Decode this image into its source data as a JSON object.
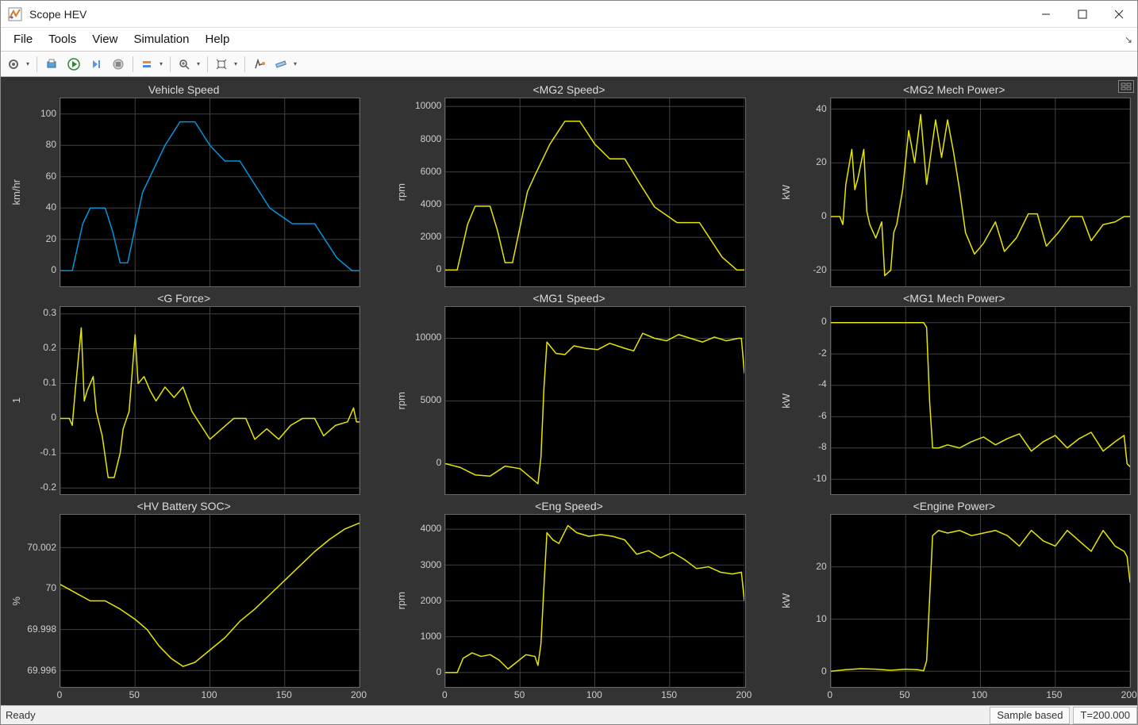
{
  "window": {
    "title": "Scope HEV",
    "minimize": "—",
    "maximize": "☐",
    "close": "✕"
  },
  "menu": {
    "items": [
      "File",
      "Tools",
      "View",
      "Simulation",
      "Help"
    ]
  },
  "toolbar": {
    "icons": [
      "settings",
      "print",
      "run",
      "step",
      "stop",
      "highlight",
      "zoom",
      "fit",
      "target",
      "measure"
    ]
  },
  "status": {
    "ready": "Ready",
    "mode": "Sample based",
    "time": "T=200.000"
  },
  "layout": {
    "bg": "#333333",
    "plot_bg": "#000000",
    "grid_color": "#404040",
    "tick_color": "#cccccc",
    "title_color": "#dddddd",
    "xlim": [
      0,
      200
    ],
    "xticks": [
      0,
      50,
      100,
      150,
      200
    ],
    "line_width": 1.5,
    "font_size_title": 14,
    "font_size_tick": 12
  },
  "plots": [
    {
      "title": "Vehicle Speed",
      "ylabel": "km/hr",
      "ylim": [
        -10,
        110
      ],
      "yticks": [
        0,
        20,
        40,
        60,
        80,
        100
      ],
      "color": "#0096db",
      "data": [
        [
          0,
          0
        ],
        [
          8,
          0
        ],
        [
          15,
          30
        ],
        [
          20,
          40
        ],
        [
          30,
          40
        ],
        [
          35,
          25
        ],
        [
          40,
          5
        ],
        [
          45,
          5
        ],
        [
          55,
          50
        ],
        [
          60,
          60
        ],
        [
          70,
          80
        ],
        [
          80,
          95
        ],
        [
          90,
          95
        ],
        [
          100,
          80
        ],
        [
          110,
          70
        ],
        [
          120,
          70
        ],
        [
          130,
          55
        ],
        [
          140,
          40
        ],
        [
          155,
          30
        ],
        [
          170,
          30
        ],
        [
          185,
          8
        ],
        [
          195,
          0
        ],
        [
          200,
          0
        ]
      ]
    },
    {
      "title": "<MG2 Speed>",
      "ylabel": "rpm",
      "ylim": [
        -1000,
        10500
      ],
      "yticks": [
        0,
        2000,
        4000,
        6000,
        8000,
        10000
      ],
      "color": "#e6e600",
      "data": [
        [
          0,
          0
        ],
        [
          8,
          0
        ],
        [
          15,
          2800
        ],
        [
          20,
          3900
        ],
        [
          30,
          3900
        ],
        [
          35,
          2400
        ],
        [
          40,
          450
        ],
        [
          45,
          450
        ],
        [
          55,
          4800
        ],
        [
          60,
          5800
        ],
        [
          70,
          7700
        ],
        [
          80,
          9100
        ],
        [
          90,
          9100
        ],
        [
          100,
          7700
        ],
        [
          110,
          6800
        ],
        [
          120,
          6800
        ],
        [
          130,
          5300
        ],
        [
          140,
          3850
        ],
        [
          155,
          2900
        ],
        [
          170,
          2900
        ],
        [
          185,
          800
        ],
        [
          195,
          0
        ],
        [
          200,
          0
        ]
      ]
    },
    {
      "title": "<MG2 Mech Power>",
      "ylabel": "kW",
      "ylim": [
        -26,
        44
      ],
      "yticks": [
        -20,
        0,
        20,
        40
      ],
      "color": "#e6e600",
      "data": [
        [
          0,
          0
        ],
        [
          6,
          0
        ],
        [
          8,
          -3
        ],
        [
          10,
          12
        ],
        [
          14,
          25
        ],
        [
          16,
          10
        ],
        [
          18,
          14
        ],
        [
          22,
          25
        ],
        [
          24,
          2
        ],
        [
          26,
          -3
        ],
        [
          30,
          -8
        ],
        [
          34,
          -2
        ],
        [
          36,
          -22
        ],
        [
          40,
          -20
        ],
        [
          42,
          -6
        ],
        [
          44,
          -3
        ],
        [
          48,
          10
        ],
        [
          52,
          32
        ],
        [
          56,
          20
        ],
        [
          60,
          38
        ],
        [
          64,
          12
        ],
        [
          70,
          36
        ],
        [
          74,
          22
        ],
        [
          78,
          36
        ],
        [
          82,
          24
        ],
        [
          86,
          10
        ],
        [
          90,
          -6
        ],
        [
          96,
          -14
        ],
        [
          102,
          -10
        ],
        [
          110,
          -2
        ],
        [
          116,
          -13
        ],
        [
          124,
          -8
        ],
        [
          132,
          1
        ],
        [
          138,
          1
        ],
        [
          144,
          -11
        ],
        [
          152,
          -6
        ],
        [
          160,
          0
        ],
        [
          168,
          0
        ],
        [
          174,
          -9
        ],
        [
          182,
          -3
        ],
        [
          190,
          -2
        ],
        [
          196,
          0
        ],
        [
          200,
          0
        ]
      ]
    },
    {
      "title": "<G Force>",
      "ylabel": "1",
      "ylim": [
        -0.22,
        0.32
      ],
      "yticks": [
        -0.2,
        -0.1,
        0,
        0.1,
        0.2,
        0.3
      ],
      "color": "#e6e600",
      "data": [
        [
          0,
          0
        ],
        [
          6,
          0
        ],
        [
          8,
          -0.02
        ],
        [
          10,
          0.08
        ],
        [
          14,
          0.26
        ],
        [
          16,
          0.05
        ],
        [
          18,
          0.08
        ],
        [
          22,
          0.12
        ],
        [
          24,
          0.02
        ],
        [
          28,
          -0.05
        ],
        [
          32,
          -0.17
        ],
        [
          36,
          -0.17
        ],
        [
          40,
          -0.1
        ],
        [
          42,
          -0.03
        ],
        [
          46,
          0.02
        ],
        [
          50,
          0.24
        ],
        [
          52,
          0.1
        ],
        [
          56,
          0.12
        ],
        [
          60,
          0.08
        ],
        [
          64,
          0.05
        ],
        [
          70,
          0.09
        ],
        [
          76,
          0.06
        ],
        [
          82,
          0.09
        ],
        [
          88,
          0.02
        ],
        [
          94,
          -0.02
        ],
        [
          100,
          -0.06
        ],
        [
          108,
          -0.03
        ],
        [
          116,
          0
        ],
        [
          124,
          0
        ],
        [
          130,
          -0.06
        ],
        [
          138,
          -0.03
        ],
        [
          146,
          -0.06
        ],
        [
          154,
          -0.02
        ],
        [
          162,
          0
        ],
        [
          170,
          0
        ],
        [
          176,
          -0.05
        ],
        [
          184,
          -0.02
        ],
        [
          192,
          -0.01
        ],
        [
          196,
          0.03
        ],
        [
          198,
          -0.01
        ],
        [
          200,
          -0.01
        ]
      ]
    },
    {
      "title": "<MG1 Speed>",
      "ylabel": "rpm",
      "ylim": [
        -2500,
        12500
      ],
      "yticks": [
        0,
        5000,
        10000
      ],
      "color": "#e6e600",
      "data": [
        [
          0,
          0
        ],
        [
          10,
          -300
        ],
        [
          20,
          -900
        ],
        [
          30,
          -1000
        ],
        [
          40,
          -200
        ],
        [
          50,
          -400
        ],
        [
          58,
          -1200
        ],
        [
          62,
          -1600
        ],
        [
          64,
          500
        ],
        [
          66,
          6000
        ],
        [
          68,
          9700
        ],
        [
          74,
          8800
        ],
        [
          80,
          8700
        ],
        [
          86,
          9400
        ],
        [
          94,
          9200
        ],
        [
          102,
          9100
        ],
        [
          110,
          9600
        ],
        [
          120,
          9200
        ],
        [
          126,
          9000
        ],
        [
          132,
          10400
        ],
        [
          140,
          10000
        ],
        [
          148,
          9800
        ],
        [
          156,
          10300
        ],
        [
          164,
          10000
        ],
        [
          172,
          9700
        ],
        [
          180,
          10100
        ],
        [
          188,
          9800
        ],
        [
          196,
          10000
        ],
        [
          198,
          10000
        ],
        [
          200,
          7200
        ]
      ]
    },
    {
      "title": "<MG1 Mech Power>",
      "ylabel": "kW",
      "ylim": [
        -11,
        1
      ],
      "yticks": [
        -10,
        -8,
        -6,
        -4,
        -2,
        0
      ],
      "color": "#e6e600",
      "data": [
        [
          0,
          0
        ],
        [
          62,
          0
        ],
        [
          64,
          -0.3
        ],
        [
          66,
          -5
        ],
        [
          68,
          -8
        ],
        [
          72,
          -8
        ],
        [
          78,
          -7.8
        ],
        [
          86,
          -8
        ],
        [
          94,
          -7.6
        ],
        [
          102,
          -7.3
        ],
        [
          110,
          -7.8
        ],
        [
          118,
          -7.4
        ],
        [
          126,
          -7.1
        ],
        [
          134,
          -8.2
        ],
        [
          142,
          -7.6
        ],
        [
          150,
          -7.2
        ],
        [
          158,
          -8
        ],
        [
          166,
          -7.4
        ],
        [
          174,
          -7
        ],
        [
          182,
          -8.2
        ],
        [
          190,
          -7.6
        ],
        [
          196,
          -7.2
        ],
        [
          198,
          -9
        ],
        [
          200,
          -9.2
        ]
      ]
    },
    {
      "title": "<HV Battery SOC>",
      "ylabel": "%",
      "ylim": [
        69.9952,
        70.0036
      ],
      "yticks": [
        69.996,
        69.998,
        70,
        70.002
      ],
      "color": "#e6e600",
      "data": [
        [
          0,
          70.0002
        ],
        [
          10,
          69.9998
        ],
        [
          20,
          69.9994
        ],
        [
          30,
          69.9994
        ],
        [
          40,
          69.999
        ],
        [
          50,
          69.9985
        ],
        [
          58,
          69.998
        ],
        [
          66,
          69.9972
        ],
        [
          74,
          69.9966
        ],
        [
          82,
          69.9962
        ],
        [
          90,
          69.9964
        ],
        [
          100,
          69.997
        ],
        [
          110,
          69.9976
        ],
        [
          120,
          69.9984
        ],
        [
          130,
          69.999
        ],
        [
          140,
          69.9997
        ],
        [
          150,
          70.0004
        ],
        [
          160,
          70.0011
        ],
        [
          170,
          70.0018
        ],
        [
          180,
          70.0024
        ],
        [
          190,
          70.0029
        ],
        [
          200,
          70.0032
        ]
      ]
    },
    {
      "title": "<Eng Speed>",
      "ylabel": "rpm",
      "ylim": [
        -400,
        4400
      ],
      "yticks": [
        0,
        1000,
        2000,
        3000,
        4000
      ],
      "color": "#e6e600",
      "data": [
        [
          0,
          0
        ],
        [
          8,
          0
        ],
        [
          12,
          400
        ],
        [
          18,
          550
        ],
        [
          24,
          450
        ],
        [
          30,
          500
        ],
        [
          36,
          350
        ],
        [
          42,
          100
        ],
        [
          48,
          300
        ],
        [
          54,
          500
        ],
        [
          60,
          450
        ],
        [
          62,
          200
        ],
        [
          64,
          800
        ],
        [
          66,
          2400
        ],
        [
          68,
          3900
        ],
        [
          72,
          3700
        ],
        [
          76,
          3600
        ],
        [
          82,
          4100
        ],
        [
          88,
          3900
        ],
        [
          96,
          3800
        ],
        [
          104,
          3850
        ],
        [
          112,
          3800
        ],
        [
          120,
          3700
        ],
        [
          128,
          3300
        ],
        [
          136,
          3400
        ],
        [
          144,
          3200
        ],
        [
          152,
          3350
        ],
        [
          160,
          3150
        ],
        [
          168,
          2900
        ],
        [
          176,
          2950
        ],
        [
          184,
          2800
        ],
        [
          192,
          2750
        ],
        [
          198,
          2800
        ],
        [
          200,
          2000
        ]
      ]
    },
    {
      "title": "<Engine Power>",
      "ylabel": "kW",
      "ylim": [
        -3,
        30
      ],
      "yticks": [
        0,
        10,
        20
      ],
      "color": "#e6e600",
      "data": [
        [
          0,
          0
        ],
        [
          10,
          0.3
        ],
        [
          20,
          0.5
        ],
        [
          30,
          0.4
        ],
        [
          40,
          0.2
        ],
        [
          50,
          0.4
        ],
        [
          58,
          0.3
        ],
        [
          62,
          0.1
        ],
        [
          64,
          2
        ],
        [
          66,
          14
        ],
        [
          68,
          26
        ],
        [
          72,
          27
        ],
        [
          78,
          26.5
        ],
        [
          86,
          27
        ],
        [
          94,
          26
        ],
        [
          102,
          26.5
        ],
        [
          110,
          27
        ],
        [
          118,
          26
        ],
        [
          126,
          24
        ],
        [
          134,
          27
        ],
        [
          142,
          25
        ],
        [
          150,
          24
        ],
        [
          158,
          27
        ],
        [
          166,
          25
        ],
        [
          174,
          23
        ],
        [
          182,
          27
        ],
        [
          190,
          24
        ],
        [
          196,
          23
        ],
        [
          198,
          22
        ],
        [
          200,
          17
        ]
      ]
    }
  ]
}
